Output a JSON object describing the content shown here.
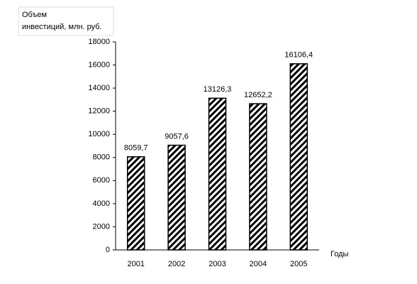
{
  "chart_data": {
    "type": "bar",
    "ylabel": [
      "Объем",
      "инвестиций, млн. руб."
    ],
    "xlabel": "Годы",
    "categories": [
      "2001",
      "2002",
      "2003",
      "2004",
      "2005"
    ],
    "values": [
      8059.7,
      9057.6,
      13126.3,
      12652.2,
      16106.4
    ],
    "value_labels": [
      "8059,7",
      "9057,6",
      "13126,3",
      "12652,2",
      "16106,4"
    ],
    "color": "#000000",
    "ylim": [
      0,
      18000
    ],
    "yticks": [
      0,
      2000,
      4000,
      6000,
      8000,
      10000,
      12000,
      14000,
      16000,
      18000
    ],
    "grid": false
  }
}
